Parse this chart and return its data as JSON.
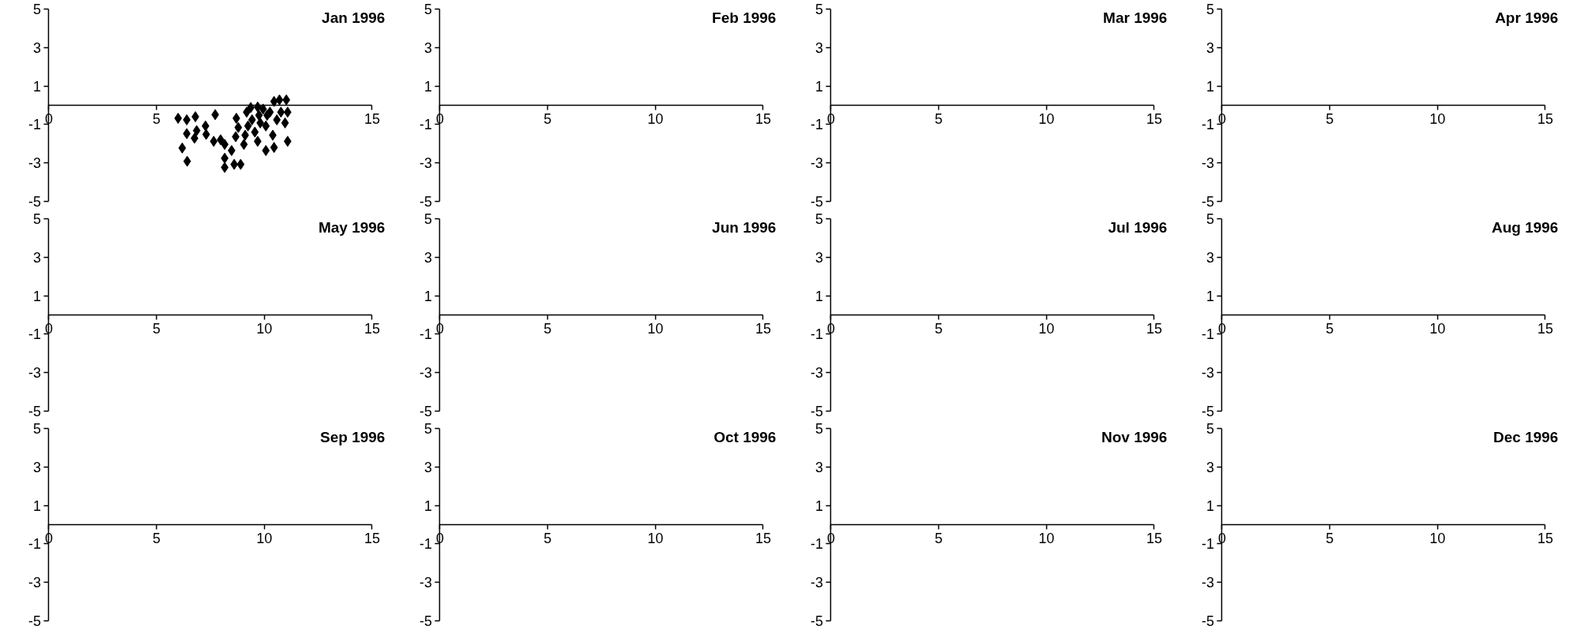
{
  "chart_data": [
    {
      "type": "scatter",
      "title": "Jan 1996",
      "marker": "diamond",
      "grid": false,
      "xlim": [
        0,
        15
      ],
      "xticks": [
        0,
        5,
        {
          "value": 10,
          "label": null
        },
        15
      ],
      "ylim": [
        -5,
        5
      ],
      "yticks": [
        -5,
        -3,
        -1,
        1,
        3,
        5
      ],
      "series": [
        {
          "color": "#000000",
          "x": [
            6.0,
            6.4,
            6.8,
            6.4,
            6.76,
            6.86,
            6.19,
            6.42,
            7.27,
            7.3,
            7.72,
            7.65,
            7.97,
            8.16,
            8.16,
            8.16,
            8.48,
            8.6,
            8.9,
            8.7,
            8.79,
            8.67,
            9.05,
            9.18,
            9.37,
            9.69,
            9.94,
            9.43,
            9.81,
            9.56,
            9.69,
            10.07,
            10.45,
            10.39,
            10.26,
            10.45,
            10.7,
            11.02,
            11.08,
            10.96,
            11.08,
            10.58,
            10.07,
            9.24,
            9.11,
            10.77,
            10.13,
            9.75
          ],
          "values": [
            -0.68,
            -0.76,
            -0.6,
            -1.48,
            -1.72,
            -1.32,
            -2.23,
            -2.92,
            -1.08,
            -1.52,
            -0.49,
            -1.88,
            -1.8,
            -2.04,
            -2.76,
            -3.24,
            -2.36,
            -3.08,
            -3.08,
            -0.68,
            -1.16,
            -1.64,
            -2.04,
            -0.36,
            -0.12,
            -0.09,
            -0.2,
            -0.76,
            -0.92,
            -1.4,
            -1.88,
            -2.36,
            -2.2,
            -1.56,
            -0.36,
            0.2,
            0.28,
            0.28,
            -0.36,
            -0.92,
            -1.88,
            -0.76,
            -1.08,
            -1.08,
            -1.56,
            -0.36,
            -0.52,
            -0.52
          ]
        }
      ]
    },
    {
      "type": "scatter",
      "title": "Feb 1996",
      "grid": false,
      "xlim": [
        0,
        15
      ],
      "xticks": [
        0,
        5,
        10,
        15
      ],
      "ylim": [
        -5,
        5
      ],
      "yticks": [
        -5,
        -3,
        -1,
        1,
        3,
        5
      ]
    },
    {
      "type": "scatter",
      "title": "Mar 1996",
      "grid": false,
      "xlim": [
        0,
        15
      ],
      "xticks": [
        0,
        5,
        10,
        15
      ],
      "ylim": [
        -5,
        5
      ],
      "yticks": [
        -5,
        -3,
        -1,
        1,
        3,
        5
      ]
    },
    {
      "type": "scatter",
      "title": "Apr 1996",
      "grid": false,
      "xlim": [
        0,
        15
      ],
      "xticks": [
        0,
        5,
        10,
        15
      ],
      "ylim": [
        -5,
        5
      ],
      "yticks": [
        -5,
        -3,
        -1,
        1,
        3,
        5
      ]
    },
    {
      "type": "scatter",
      "title": "May 1996",
      "grid": false,
      "xlim": [
        0,
        15
      ],
      "xticks": [
        0,
        5,
        10,
        15
      ],
      "ylim": [
        -5,
        5
      ],
      "yticks": [
        -5,
        -3,
        -1,
        1,
        3,
        5
      ]
    },
    {
      "type": "scatter",
      "title": "Jun 1996",
      "grid": false,
      "xlim": [
        0,
        15
      ],
      "xticks": [
        0,
        5,
        10,
        15
      ],
      "ylim": [
        -5,
        5
      ],
      "yticks": [
        -5,
        -3,
        -1,
        1,
        3,
        5
      ]
    },
    {
      "type": "scatter",
      "title": "Jul 1996",
      "grid": false,
      "xlim": [
        0,
        15
      ],
      "xticks": [
        0,
        5,
        10,
        15
      ],
      "ylim": [
        -5,
        5
      ],
      "yticks": [
        -5,
        -3,
        -1,
        1,
        3,
        5
      ]
    },
    {
      "type": "scatter",
      "title": "Aug 1996",
      "grid": false,
      "xlim": [
        0,
        15
      ],
      "xticks": [
        0,
        5,
        10,
        15
      ],
      "ylim": [
        -5,
        5
      ],
      "yticks": [
        -5,
        -3,
        -1,
        1,
        3,
        5
      ]
    },
    {
      "type": "scatter",
      "title": "Sep 1996",
      "grid": false,
      "xlim": [
        0,
        15
      ],
      "xticks": [
        0,
        5,
        10,
        15
      ],
      "ylim": [
        -5,
        5
      ],
      "yticks": [
        -5,
        -3,
        -1,
        1,
        3,
        5
      ]
    },
    {
      "type": "scatter",
      "title": "Oct 1996",
      "grid": false,
      "xlim": [
        0,
        15
      ],
      "xticks": [
        0,
        5,
        10,
        15
      ],
      "ylim": [
        -5,
        5
      ],
      "yticks": [
        -5,
        -3,
        -1,
        1,
        3,
        5
      ]
    },
    {
      "type": "scatter",
      "title": "Nov 1996",
      "grid": false,
      "xlim": [
        0,
        15
      ],
      "xticks": [
        0,
        5,
        10,
        15
      ],
      "ylim": [
        -5,
        5
      ],
      "yticks": [
        -5,
        -3,
        -1,
        1,
        3,
        5
      ]
    },
    {
      "type": "scatter",
      "title": "Dec 1996",
      "grid": false,
      "xlim": [
        0,
        15
      ],
      "xticks": [
        0,
        5,
        10,
        15
      ],
      "ylim": [
        -5,
        5
      ],
      "yticks": [
        -5,
        -3,
        -1,
        1,
        3,
        5
      ]
    }
  ]
}
